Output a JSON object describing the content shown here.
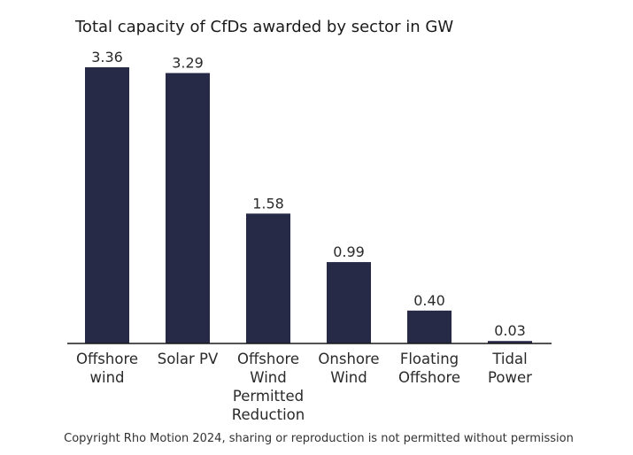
{
  "chart_data": {
    "type": "bar",
    "title": "Total capacity of CfDs awarded by sector in GW",
    "xlabel": "",
    "ylabel": "",
    "ylim": [
      0,
      3.36
    ],
    "grid": false,
    "legend": "none",
    "categories": [
      [
        "Offshore",
        "wind"
      ],
      [
        "Solar PV"
      ],
      [
        "Offshore",
        "Wind",
        "Permitted",
        "Reduction"
      ],
      [
        "Onshore",
        "Wind"
      ],
      [
        "Floating",
        "Offshore"
      ],
      [
        "Tidal",
        "Power"
      ]
    ],
    "values": [
      3.36,
      3.29,
      1.58,
      0.99,
      0.4,
      0.03
    ],
    "data_labels": [
      "3.36",
      "3.29",
      "1.58",
      "0.99",
      "0.40",
      "0.03"
    ],
    "bar_color": "#272a46",
    "axis_color": "#1a1a1a"
  },
  "footer": {
    "copyright": "Copyright Rho Motion 2024, sharing or reproduction is not permitted without permission"
  }
}
